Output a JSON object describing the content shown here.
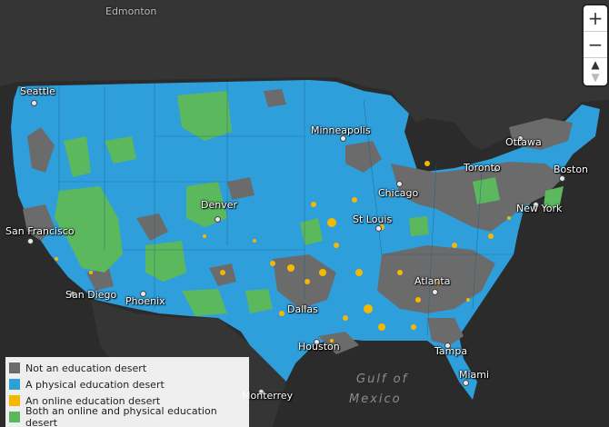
{
  "cities": {
    "edmonton": "Edmonton",
    "seattle": "Seattle",
    "minneapolis": "Minneapolis",
    "ottawa": "Ottawa",
    "toronto": "Toronto",
    "boston": "Boston",
    "chicago": "Chicago",
    "new_york": "New York",
    "denver": "Denver",
    "san_francisco": "San Francisco",
    "st_louis": "St Louis",
    "san_diego": "San Diego",
    "phoenix": "Phoenix",
    "atlanta": "Atlanta",
    "dallas": "Dallas",
    "houston": "Houston",
    "tampa": "Tampa",
    "miami": "Miami",
    "monterrey": "Monterrey"
  },
  "water": {
    "gulf_line1": "Gulf of",
    "gulf_line2": "Mexico"
  },
  "controls": {
    "zoom_in": "+",
    "zoom_out": "−",
    "compass": "▲"
  },
  "legend": {
    "items": [
      {
        "label": "Not an education desert",
        "color": "#6b6b6b"
      },
      {
        "label": "A physical education desert",
        "color": "#2e9fdb"
      },
      {
        "label": "An online education desert",
        "color": "#f5b800"
      },
      {
        "label": "Both an online and physical education desert",
        "color": "#5cb85c"
      }
    ]
  },
  "colors": {
    "background": "#2b2b2b",
    "land_other": "#3a3a3a",
    "not_desert": "#6b6b6b",
    "physical": "#2e9fdb",
    "online": "#f5b800",
    "both": "#5cb85c"
  }
}
